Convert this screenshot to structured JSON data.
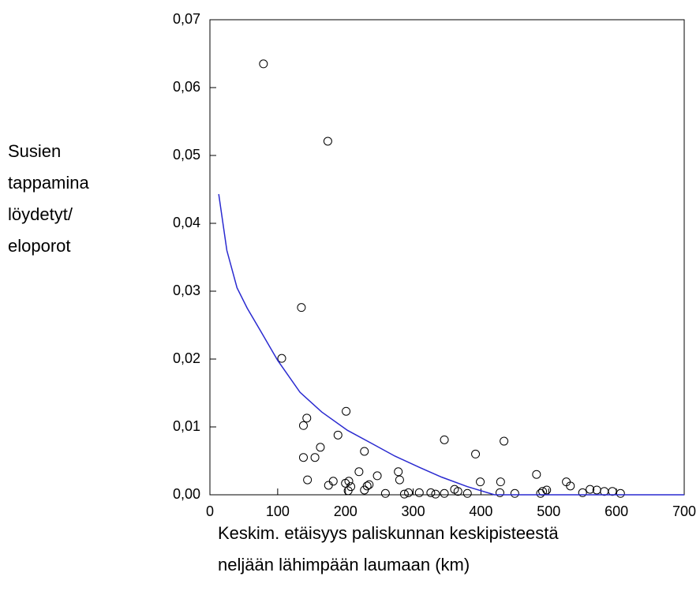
{
  "chart_data": {
    "type": "scatter",
    "xlabel": [
      "Keskim. etäisyys paliskunnan keskipisteestä",
      "neljään lähimpään laumaan  (km)"
    ],
    "ylabel": [
      "Susien",
      "tappamina",
      "löydetyt/",
      "eloporot"
    ],
    "xlim": [
      0,
      700
    ],
    "xticks": [
      0,
      100,
      200,
      300,
      400,
      500,
      600,
      700
    ],
    "ylim": [
      0,
      0.07
    ],
    "yticks": [
      {
        "value": 0,
        "label": "0,00"
      },
      {
        "value": 0.01,
        "label": "0,01"
      },
      {
        "value": 0.02,
        "label": "0,02"
      },
      {
        "value": 0.03,
        "label": "0,03"
      },
      {
        "value": 0.04,
        "label": "0,04"
      },
      {
        "value": 0.05,
        "label": "0,05"
      },
      {
        "value": 0.06,
        "label": "0,06"
      },
      {
        "value": 0.07,
        "label": "0,07"
      }
    ],
    "series": [
      {
        "type": "scatter",
        "color": "#000000",
        "x": [
          79,
          174,
          135,
          106,
          201,
          143,
          138,
          346,
          434,
          189,
          163,
          228,
          392,
          138,
          155,
          482,
          278,
          220,
          247,
          144,
          182,
          280,
          200,
          205,
          175,
          399,
          429,
          526,
          532,
          232,
          235,
          208,
          204,
          228,
          259,
          287,
          293,
          309,
          326,
          333,
          346,
          361,
          366,
          380,
          428,
          450,
          488,
          491,
          497,
          550,
          561,
          571,
          582,
          594,
          606
        ],
        "values": [
          0.0635,
          0.0521,
          0.0276,
          0.0201,
          0.0123,
          0.0113,
          0.0102,
          0.0081,
          0.0079,
          0.0088,
          0.007,
          0.0064,
          0.006,
          0.0055,
          0.0055,
          0.003,
          0.0034,
          0.0034,
          0.0028,
          0.0022,
          0.002,
          0.0022,
          0.0017,
          0.002,
          0.0014,
          0.0019,
          0.0019,
          0.0019,
          0.0013,
          0.0013,
          0.0015,
          0.0012,
          0.0006,
          0.0007,
          0.0002,
          0.0001,
          0.0003,
          0.0003,
          0.0003,
          0.0001,
          0.0002,
          0.0008,
          0.0005,
          0.0002,
          0.0003,
          0.0002,
          0.0002,
          0.0005,
          0.0007,
          0.0003,
          0.0008,
          0.0007,
          0.0005,
          0.0005,
          0.0002
        ]
      },
      {
        "type": "line",
        "color": "#2a2ad0",
        "x": [
          13,
          25,
          40,
          55,
          75,
          100,
          133,
          165,
          203,
          240,
          273,
          310,
          342,
          380,
          420,
          700
        ],
        "values": [
          0.0443,
          0.036,
          0.0305,
          0.0275,
          0.0241,
          0.0198,
          0.0151,
          0.0122,
          0.0095,
          0.0075,
          0.0057,
          0.004,
          0.0026,
          0.0012,
          0,
          0
        ]
      }
    ]
  }
}
